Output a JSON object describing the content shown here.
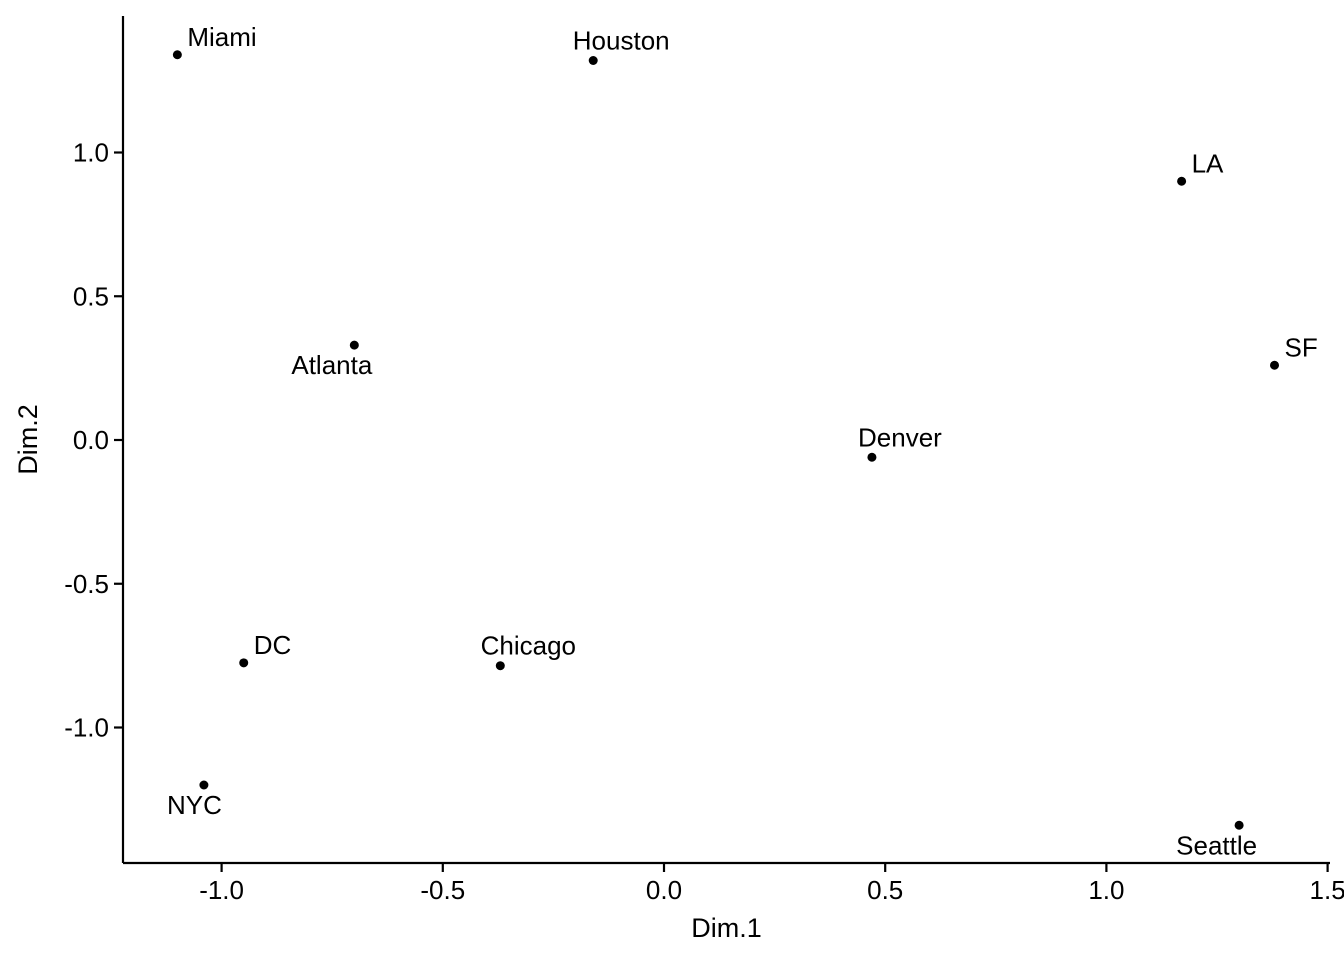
{
  "chart_data": {
    "type": "scatter",
    "title": "",
    "xlabel": "Dim.1",
    "ylabel": "Dim.2",
    "xlim": [
      -1.23,
      1.5
    ],
    "ylim": [
      -1.47,
      1.47
    ],
    "xticks": [
      -1.0,
      -0.5,
      0.0,
      0.5,
      1.0,
      1.5
    ],
    "xtick_labels": [
      "-1.0",
      "-0.5",
      "0.0",
      "0.5",
      "1.0",
      "1.5"
    ],
    "yticks": [
      -1.0,
      -0.5,
      0.0,
      0.5,
      1.0
    ],
    "ytick_labels": [
      "-1.0",
      "-0.5",
      "0.0",
      "0.5",
      "1.0"
    ],
    "grid": false,
    "legend": "none",
    "point_color": "#000000",
    "points": [
      {
        "label": "Miami",
        "x": -1.1,
        "y": 1.34,
        "label_pos": "upper-right"
      },
      {
        "label": "Houston",
        "x": -0.16,
        "y": 1.32,
        "label_pos": "above"
      },
      {
        "label": "LA",
        "x": 1.17,
        "y": 0.9,
        "label_pos": "upper-right"
      },
      {
        "label": "SF",
        "x": 1.38,
        "y": 0.26,
        "label_pos": "upper-right"
      },
      {
        "label": "Atlanta",
        "x": -0.7,
        "y": 0.33,
        "label_pos": "lower-left"
      },
      {
        "label": "Denver",
        "x": 0.47,
        "y": -0.06,
        "label_pos": "above"
      },
      {
        "label": "DC",
        "x": -0.95,
        "y": -0.775,
        "label_pos": "upper-right"
      },
      {
        "label": "Chicago",
        "x": -0.37,
        "y": -0.785,
        "label_pos": "above"
      },
      {
        "label": "NYC",
        "x": -1.04,
        "y": -1.2,
        "label_pos": "lower-left"
      },
      {
        "label": "Seattle",
        "x": 1.3,
        "y": -1.34,
        "label_pos": "lower-left"
      }
    ]
  }
}
